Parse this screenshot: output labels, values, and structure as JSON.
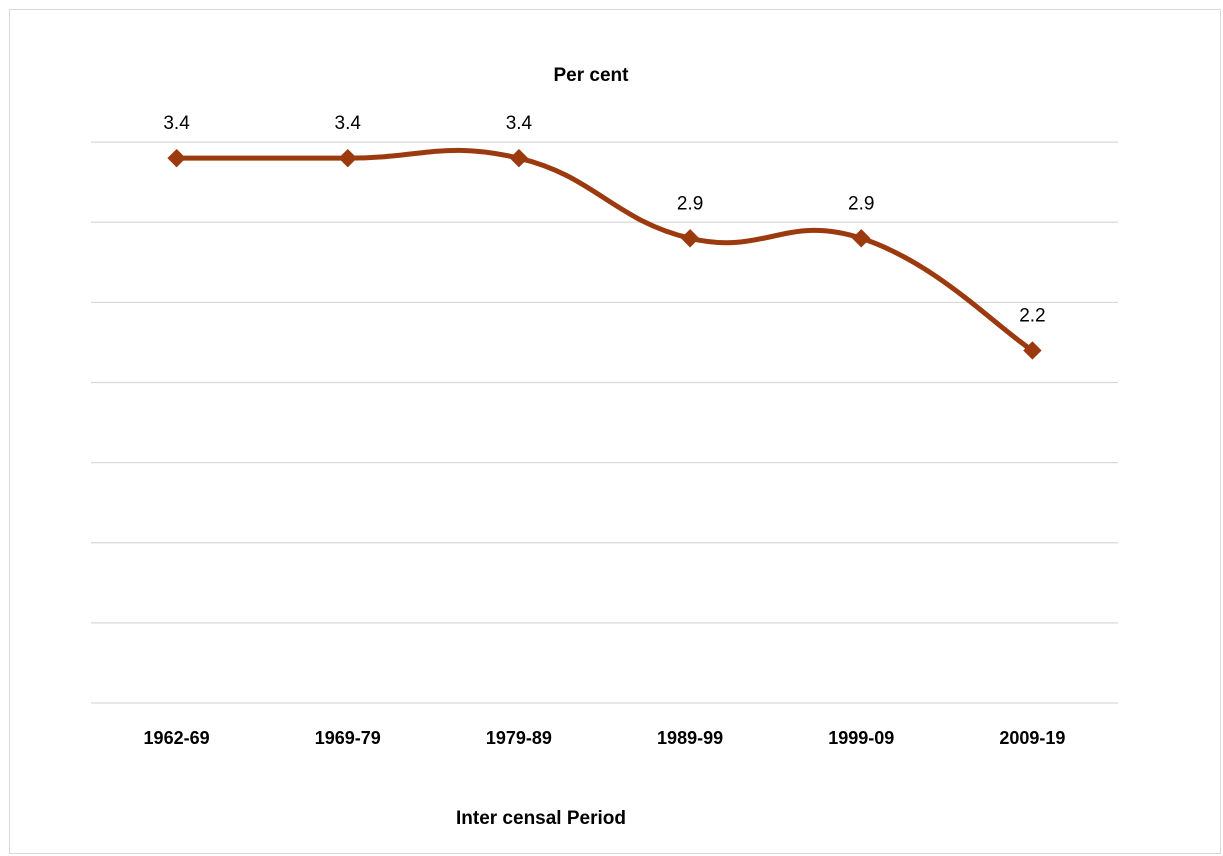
{
  "chart_data": {
    "type": "line",
    "title": "Per cent",
    "xlabel": "Inter censal Period",
    "ylabel": "",
    "categories": [
      "1962-69",
      "1969-79",
      "1979-89",
      "1989-99",
      "1999-09",
      "2009-19"
    ],
    "series": [
      {
        "values": [
          3.4,
          3.4,
          3.4,
          2.9,
          2.9,
          2.2
        ],
        "color": "#9c3a0f",
        "marker": "diamond",
        "smooth": true
      }
    ],
    "data_labels": [
      "3.4",
      "3.4",
      "3.4",
      "2.9",
      "2.9",
      "2.2"
    ],
    "ylim": [
      0,
      4
    ],
    "y_major_unit": 0.5,
    "grid": true,
    "y_axis_labels_visible": false,
    "legend": "none"
  }
}
